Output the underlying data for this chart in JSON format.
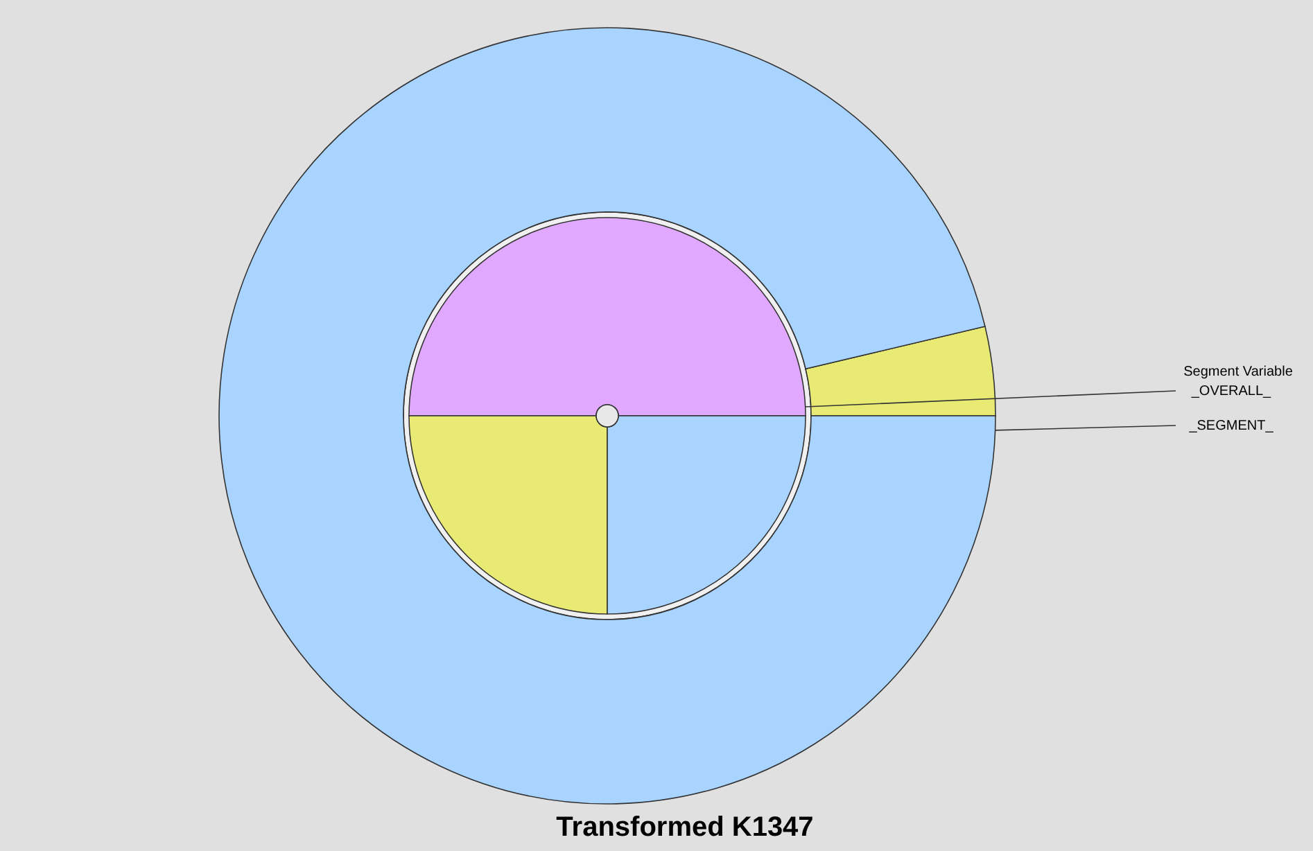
{
  "chart_data": {
    "type": "donut",
    "title": "Transformed K1347",
    "legend_title": "Segment Variable",
    "legend": "right",
    "series": [
      {
        "name": "_OVERALL_",
        "values": [
          50,
          25,
          25
        ],
        "colors": [
          "#e0a8ff",
          "#e8ea74",
          "#a8d4ff"
        ]
      },
      {
        "name": "_SEGMENT_",
        "values": [
          3.7,
          96.3
        ],
        "colors": [
          "#e8ea74",
          "#a8d4ff"
        ]
      }
    ]
  }
}
